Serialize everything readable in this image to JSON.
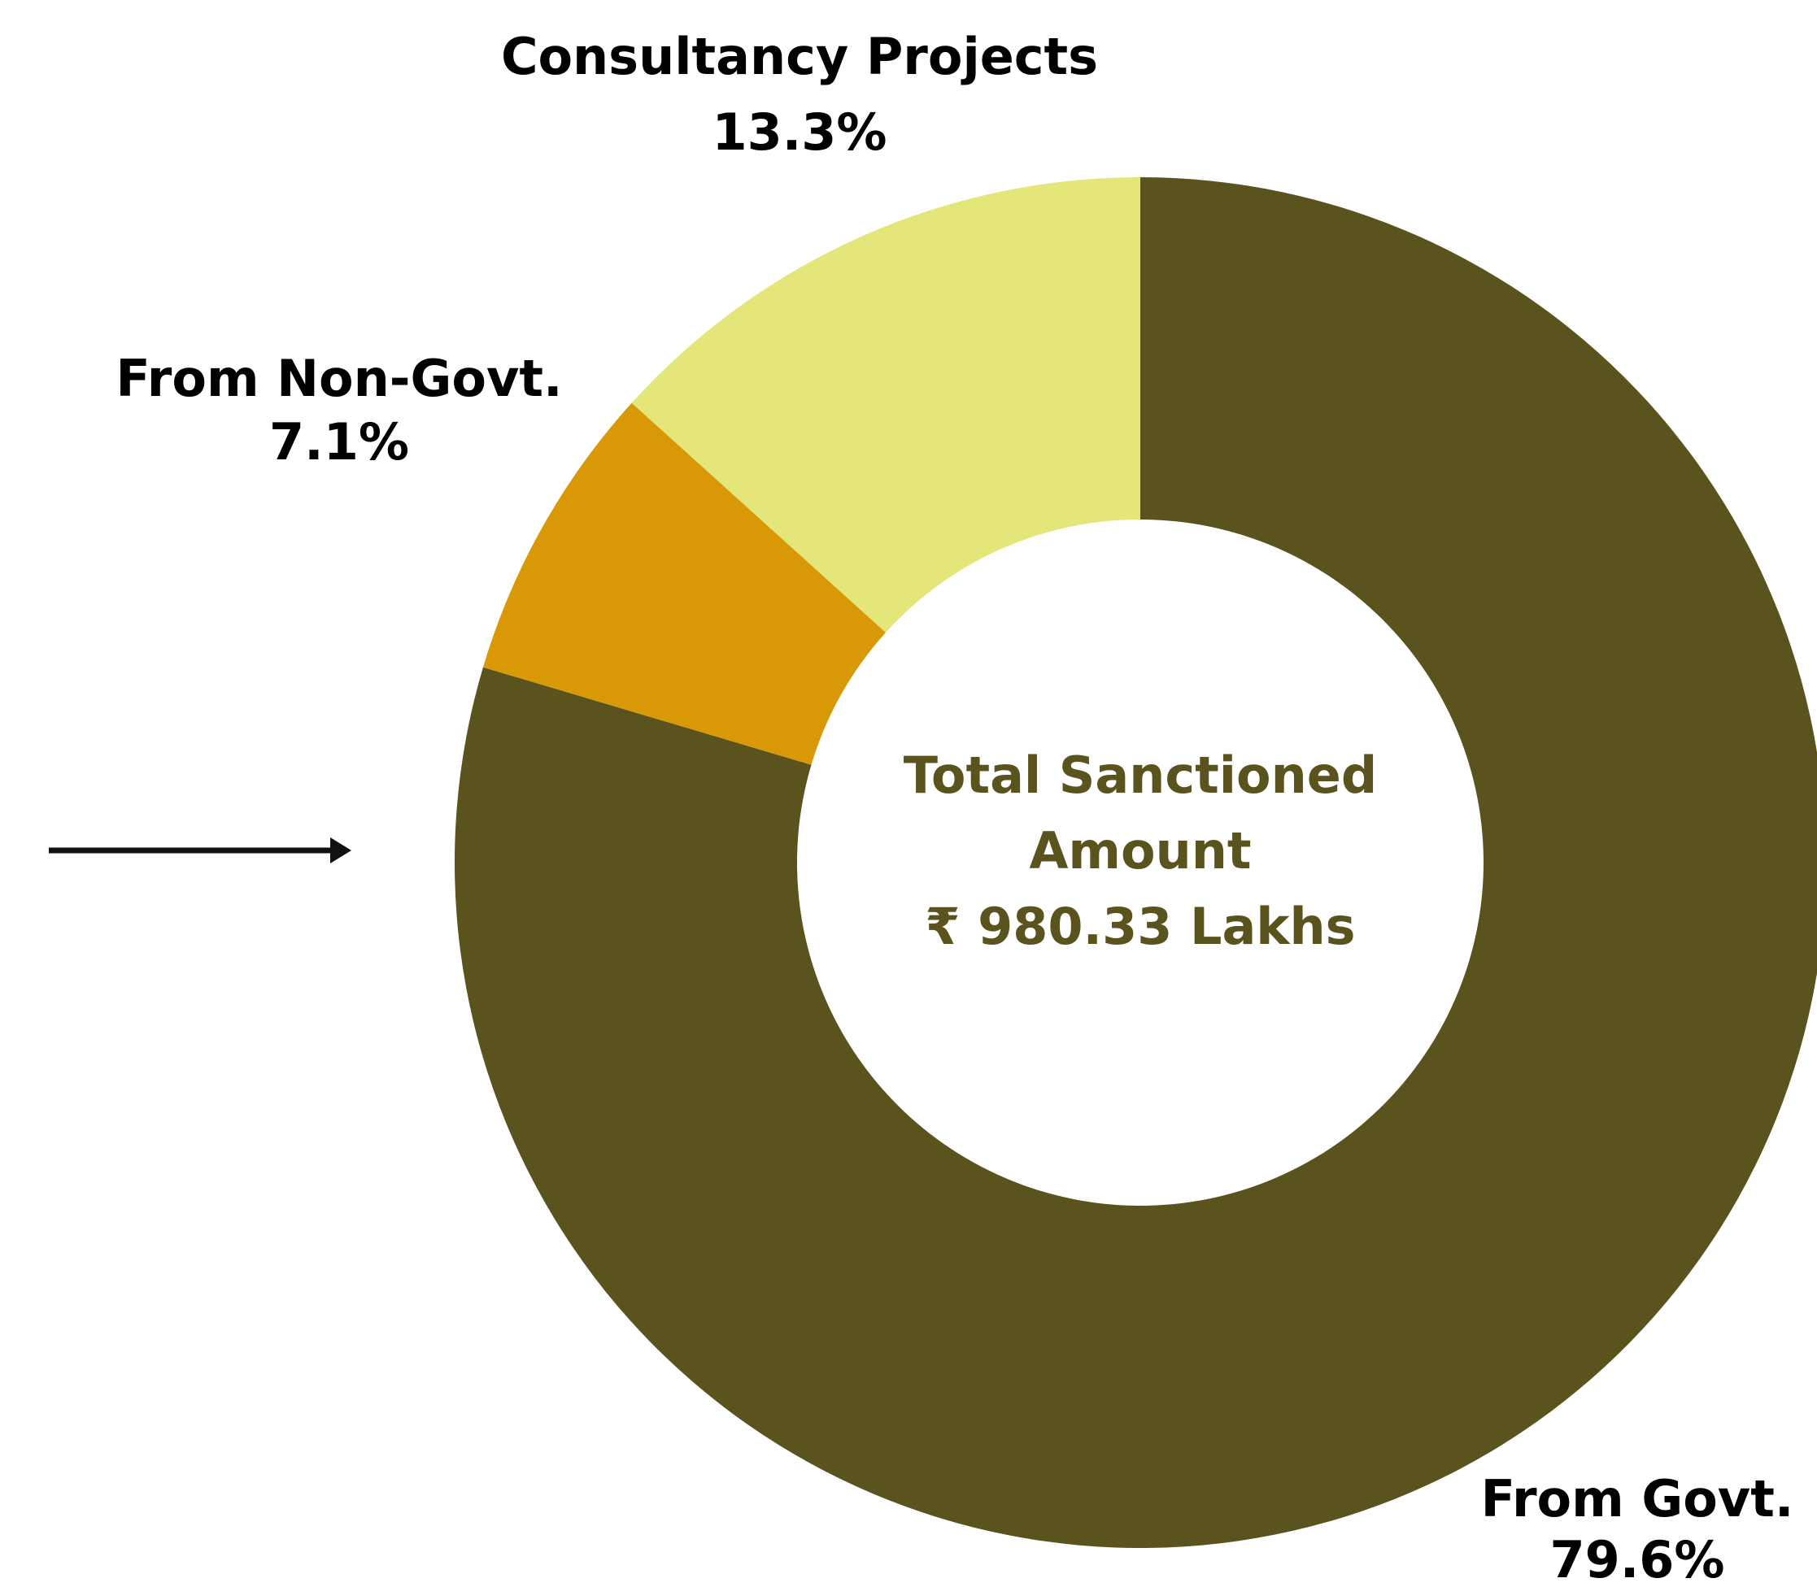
{
  "chart_data": {
    "type": "donut",
    "categories": [
      "From Govt.",
      "From Non-Govt.",
      "Consultancy Projects"
    ],
    "values": [
      79.6,
      7.1,
      13.3
    ],
    "value_labels": [
      "79.6%",
      "7.1%",
      "13.3%"
    ],
    "colors": [
      "#5a531e",
      "#d99805",
      "#e5e67a"
    ],
    "center_text": [
      "Total Sanctioned",
      "Amount",
      "₹ 980.33 Lakhs"
    ]
  }
}
